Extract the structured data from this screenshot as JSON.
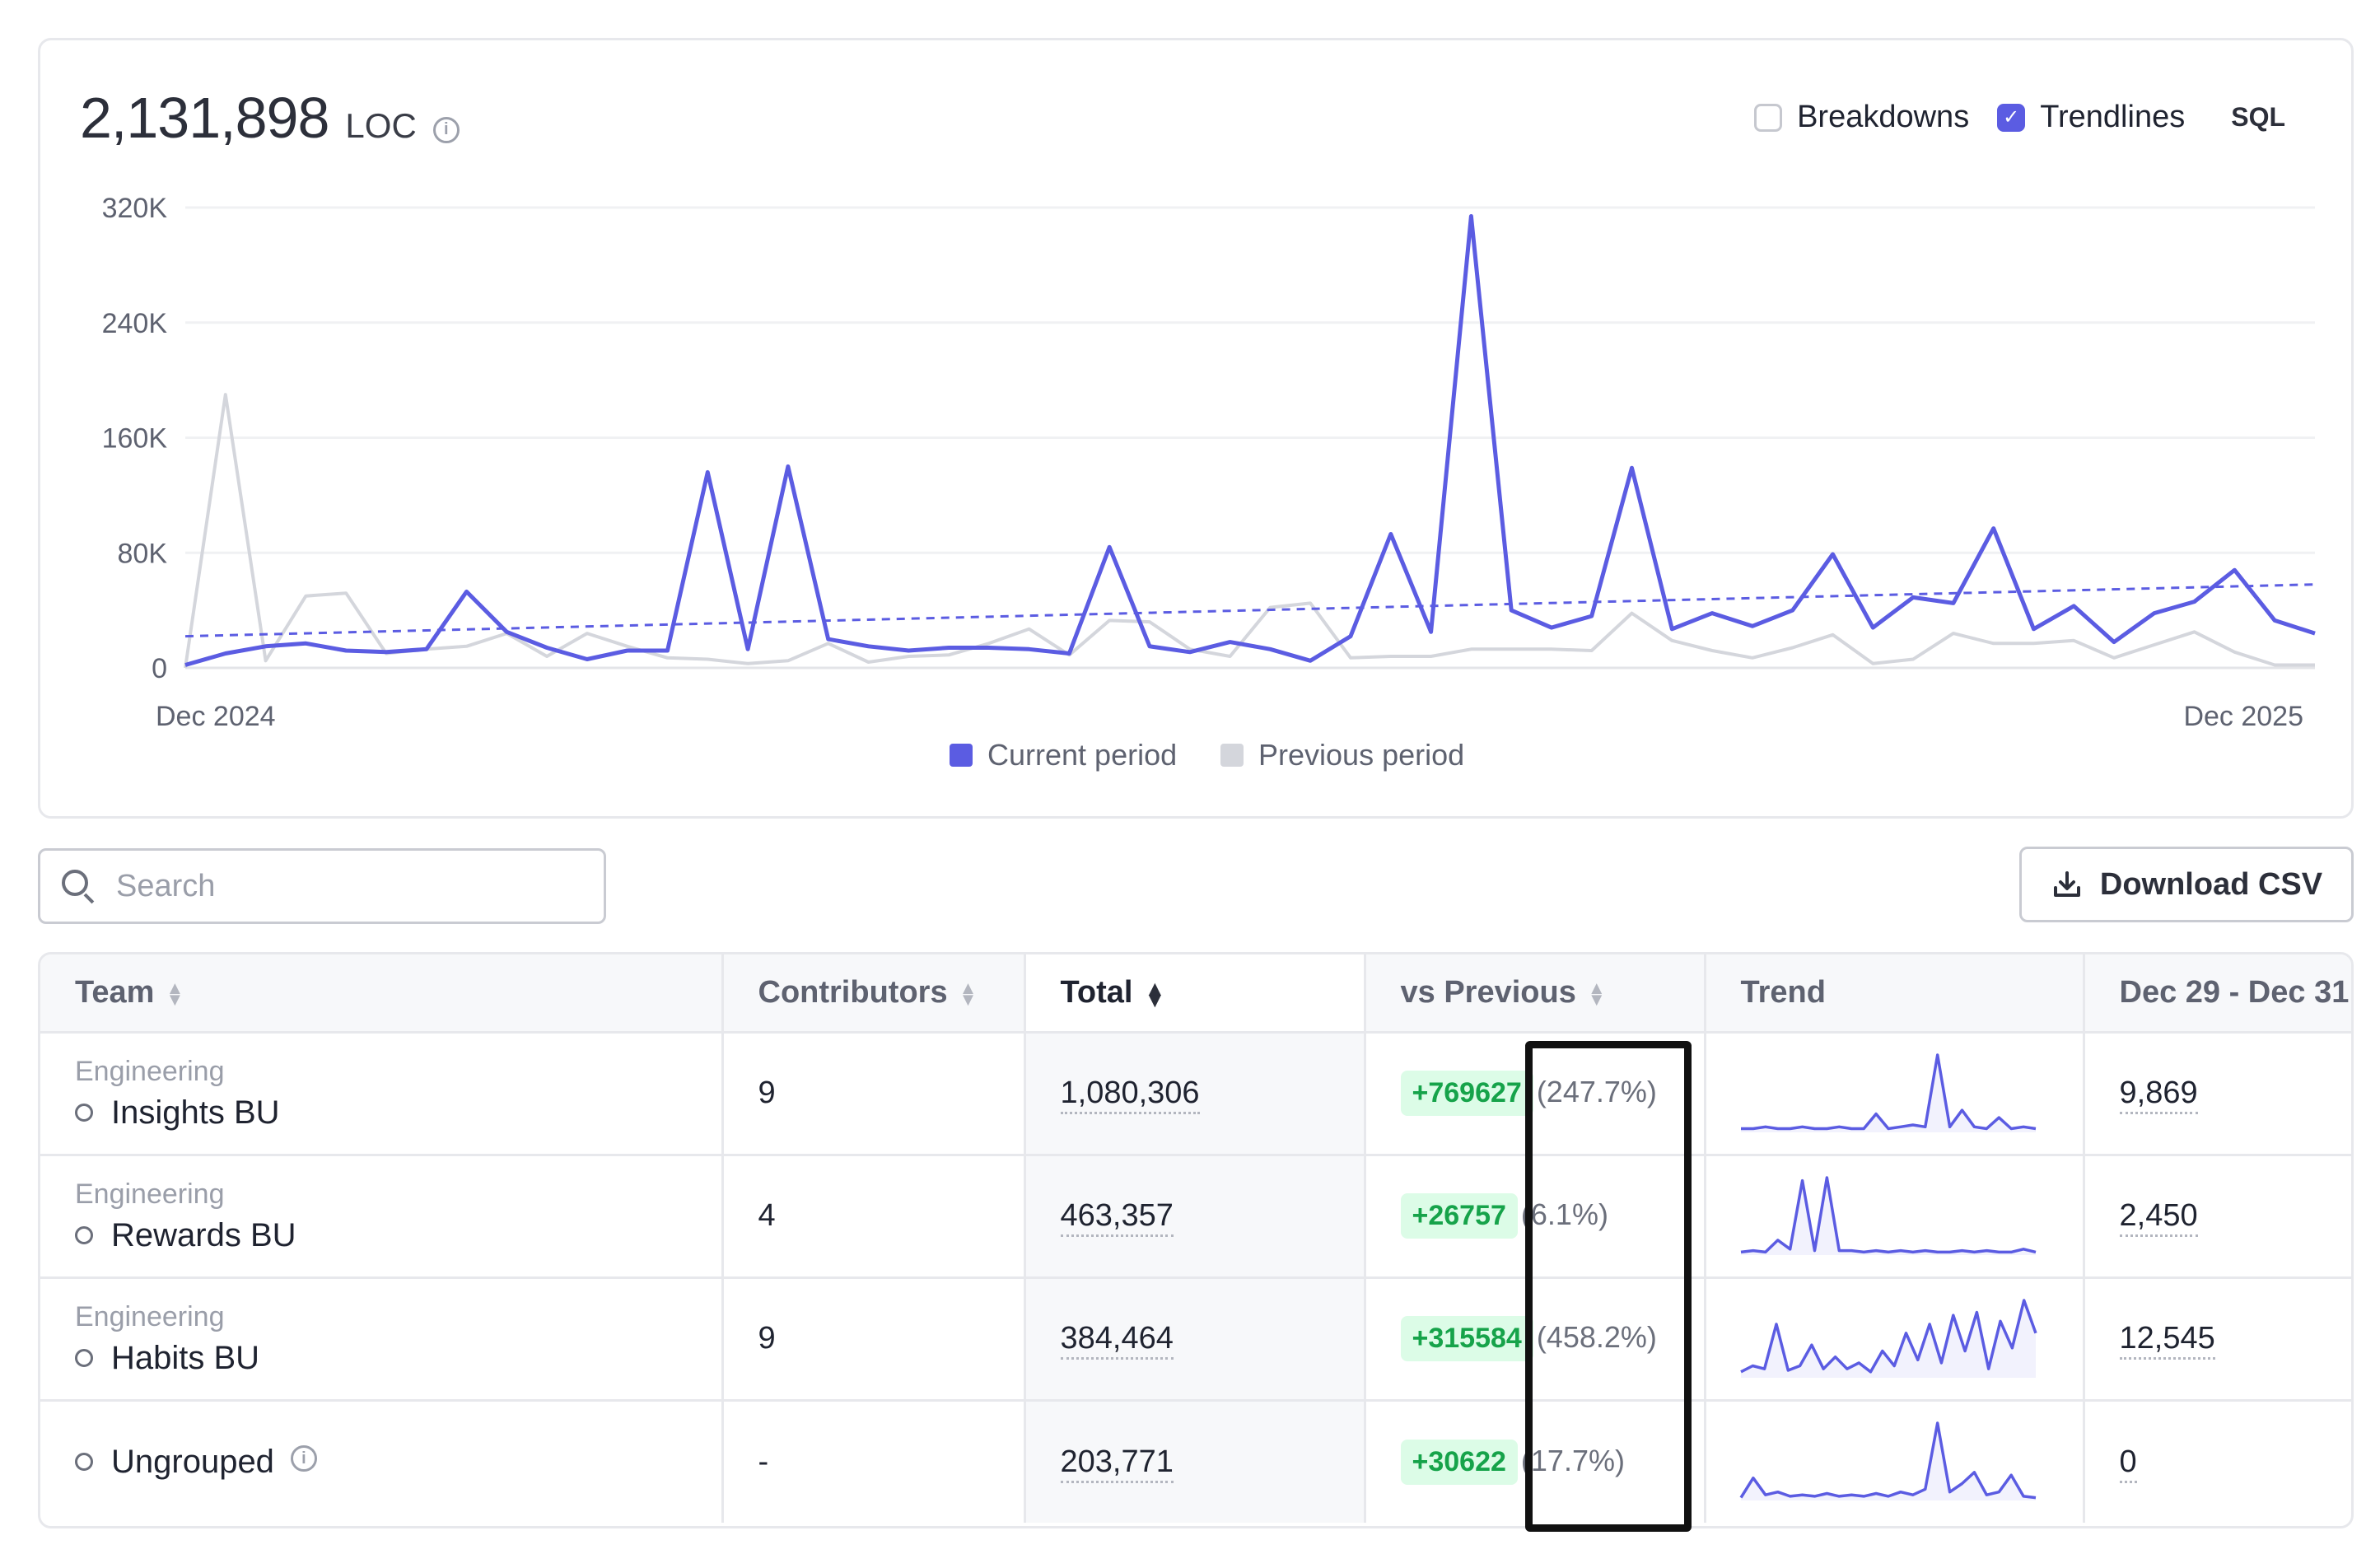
{
  "metric": {
    "value": "2,131,898",
    "unit": "LOC",
    "info_icon": "info-icon"
  },
  "controls": {
    "breakdowns": {
      "label": "Breakdowns",
      "checked": false
    },
    "trendlines": {
      "label": "Trendlines",
      "checked": true
    },
    "sql_label": "SQL"
  },
  "colors": {
    "current": "#5b5ce2",
    "previous": "#d4d6dc",
    "delta_bg": "#dcfce7",
    "delta_text": "#16a34a"
  },
  "chart_data": {
    "type": "line",
    "x_start_label": "Dec 2024",
    "x_end_label": "Dec 2025",
    "y_ticks": [
      "0",
      "80K",
      "160K",
      "240K",
      "320K"
    ],
    "ylim": [
      0,
      320000
    ],
    "grid": true,
    "legend_position": "bottom-center",
    "series": [
      {
        "name": "Current period",
        "color": "#5b5ce2",
        "values": [
          2000,
          10000,
          15000,
          17000,
          12000,
          11000,
          13000,
          53000,
          25000,
          14000,
          6000,
          12000,
          12000,
          136000,
          13000,
          140000,
          20000,
          15000,
          12000,
          14000,
          14000,
          13000,
          10000,
          84000,
          15000,
          11000,
          18000,
          13000,
          5000,
          22000,
          93000,
          25000,
          314000,
          40000,
          28000,
          36000,
          139000,
          27000,
          38000,
          29000,
          40000,
          79000,
          28000,
          49000,
          45000,
          97000,
          27000,
          43000,
          18000,
          38000,
          46000,
          68000,
          33000,
          24000
        ]
      },
      {
        "name": "Previous period",
        "color": "#d4d6dc",
        "values": [
          0,
          190000,
          5000,
          50000,
          52000,
          10000,
          13000,
          15000,
          24000,
          8000,
          24000,
          15000,
          7000,
          6000,
          3000,
          5000,
          17000,
          4000,
          8000,
          9000,
          17000,
          27000,
          9000,
          33000,
          32000,
          13000,
          8000,
          42000,
          45000,
          7000,
          8000,
          8000,
          13000,
          13000,
          13000,
          12000,
          38000,
          19000,
          12000,
          7000,
          14000,
          23000,
          3000,
          6000,
          24000,
          17000,
          17000,
          19000,
          7000,
          16000,
          25000,
          11000,
          2000,
          2000
        ]
      }
    ],
    "trendline": {
      "series": "Current period",
      "start": 22000,
      "end": 58000
    }
  },
  "search": {
    "placeholder": "Search"
  },
  "download": {
    "label": "Download CSV"
  },
  "table": {
    "headers": {
      "team": "Team",
      "contributors": "Contributors",
      "total": "Total",
      "vs_previous": "vs Previous",
      "trend": "Trend",
      "dec": "Dec 29 - Dec 31"
    },
    "rows": [
      {
        "group": "Engineering",
        "team": "Insights BU",
        "contributors": "9",
        "total": "1,080,306",
        "delta": "+769627",
        "pct": "(247.7%)",
        "dec": "9,869",
        "spark": [
          2,
          2,
          3,
          2,
          2,
          3,
          2,
          2,
          3,
          2,
          2,
          10,
          2,
          3,
          4,
          3,
          42,
          3,
          12,
          3,
          2,
          8,
          2,
          3,
          2
        ]
      },
      {
        "group": "Engineering",
        "team": "Rewards BU",
        "contributors": "4",
        "total": "463,357",
        "delta": "+26757",
        "pct": "(6.1%)",
        "dec": "2,450",
        "spark": [
          2,
          3,
          2,
          10,
          4,
          50,
          3,
          52,
          3,
          3,
          2,
          3,
          2,
          3,
          2,
          3,
          2,
          2,
          3,
          2,
          3,
          2,
          2,
          4,
          2
        ]
      },
      {
        "group": "Engineering",
        "team": "Habits BU",
        "contributors": "9",
        "total": "384,464",
        "delta": "+315584",
        "pct": "(458.2%)",
        "dec": "12,545",
        "spark": [
          4,
          8,
          6,
          36,
          5,
          8,
          22,
          6,
          14,
          6,
          10,
          4,
          18,
          8,
          30,
          12,
          36,
          10,
          42,
          18,
          44,
          6,
          38,
          20,
          52,
          30
        ]
      },
      {
        "group": "",
        "team": "Ungrouped",
        "contributors": "-",
        "total": "203,771",
        "delta": "+30622",
        "pct": "(17.7%)",
        "dec": "0",
        "info_icon": "info-icon",
        "spark": [
          2,
          16,
          4,
          6,
          3,
          4,
          3,
          5,
          3,
          4,
          3,
          5,
          3,
          6,
          4,
          8,
          55,
          6,
          12,
          20,
          4,
          6,
          18,
          3,
          2
        ]
      }
    ]
  }
}
